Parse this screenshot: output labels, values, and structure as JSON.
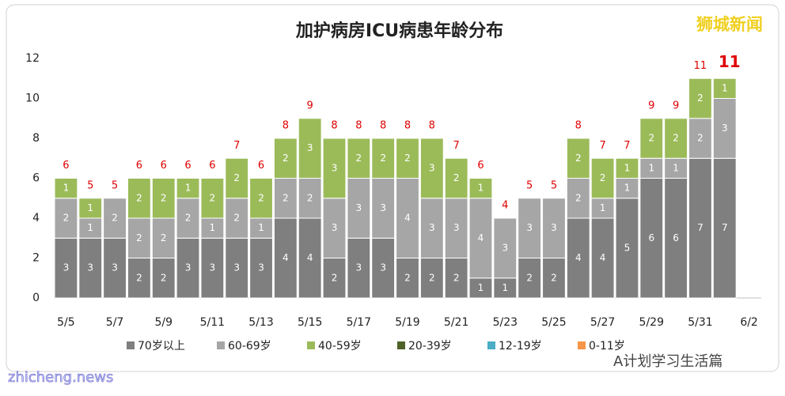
{
  "chart_data": {
    "type": "stacked-bar",
    "title": "加护病房ICU病患年龄分布",
    "categories": [
      "5/5",
      null,
      "5/7",
      null,
      "5/9",
      null,
      "5/11",
      null,
      "5/13",
      null,
      "5/15",
      null,
      "5/17",
      null,
      "5/19",
      null,
      "5/21",
      null,
      "5/23",
      null,
      "5/25",
      null,
      "5/27",
      null,
      "5/29",
      null,
      "5/31",
      null,
      "6/2"
    ],
    "series": [
      {
        "name": "70岁以上",
        "color": "#7f7f7f",
        "values": [
          3,
          3,
          3,
          2,
          2,
          3,
          3,
          3,
          3,
          4,
          4,
          2,
          3,
          3,
          2,
          2,
          2,
          1,
          1,
          2,
          2,
          4,
          4,
          5,
          6,
          6,
          7,
          7,
          null
        ]
      },
      {
        "name": "60-69岁",
        "color": "#a6a6a6",
        "values": [
          2,
          1,
          2,
          2,
          2,
          2,
          1,
          2,
          1,
          2,
          2,
          3,
          3,
          3,
          4,
          3,
          3,
          4,
          3,
          3,
          3,
          2,
          1,
          1,
          1,
          1,
          2,
          3,
          null
        ]
      },
      {
        "name": "40-59岁",
        "color": "#9bbb59",
        "values": [
          1,
          1,
          0,
          2,
          2,
          1,
          2,
          2,
          2,
          2,
          3,
          3,
          2,
          2,
          2,
          3,
          2,
          1,
          0,
          0,
          0,
          2,
          2,
          1,
          2,
          2,
          2,
          1,
          null
        ]
      },
      {
        "name": "20-39岁",
        "color": "#4f6228",
        "values": [
          0,
          0,
          0,
          0,
          0,
          0,
          0,
          0,
          0,
          0,
          0,
          0,
          0,
          0,
          0,
          0,
          0,
          0,
          0,
          0,
          0,
          0,
          0,
          0,
          0,
          0,
          0,
          0,
          null
        ]
      },
      {
        "name": "12-19岁",
        "color": "#4bacc6",
        "values": [
          0,
          0,
          0,
          0,
          0,
          0,
          0,
          0,
          0,
          0,
          0,
          0,
          0,
          0,
          0,
          0,
          0,
          0,
          0,
          0,
          0,
          0,
          0,
          0,
          0,
          0,
          0,
          0,
          null
        ]
      },
      {
        "name": "0-11岁",
        "color": "#f79646",
        "values": [
          0,
          0,
          0,
          0,
          0,
          0,
          0,
          0,
          0,
          0,
          0,
          0,
          0,
          0,
          0,
          0,
          0,
          0,
          0,
          0,
          0,
          0,
          0,
          0,
          0,
          0,
          0,
          0,
          null
        ]
      }
    ],
    "totals": [
      6,
      5,
      5,
      6,
      6,
      6,
      6,
      7,
      6,
      8,
      9,
      8,
      8,
      8,
      8,
      8,
      7,
      6,
      4,
      5,
      5,
      8,
      7,
      7,
      9,
      9,
      11,
      11,
      null
    ],
    "total_color": "#e00000",
    "ylim": [
      0,
      12
    ],
    "yticks": [
      0,
      2,
      4,
      6,
      8,
      10,
      12
    ],
    "grid": false,
    "legend": "bottom"
  },
  "watermarks": {
    "top_right": "狮城新闻",
    "bottom_left": "zhicheng.news",
    "bottom_right": "A计划学习生活篇"
  }
}
